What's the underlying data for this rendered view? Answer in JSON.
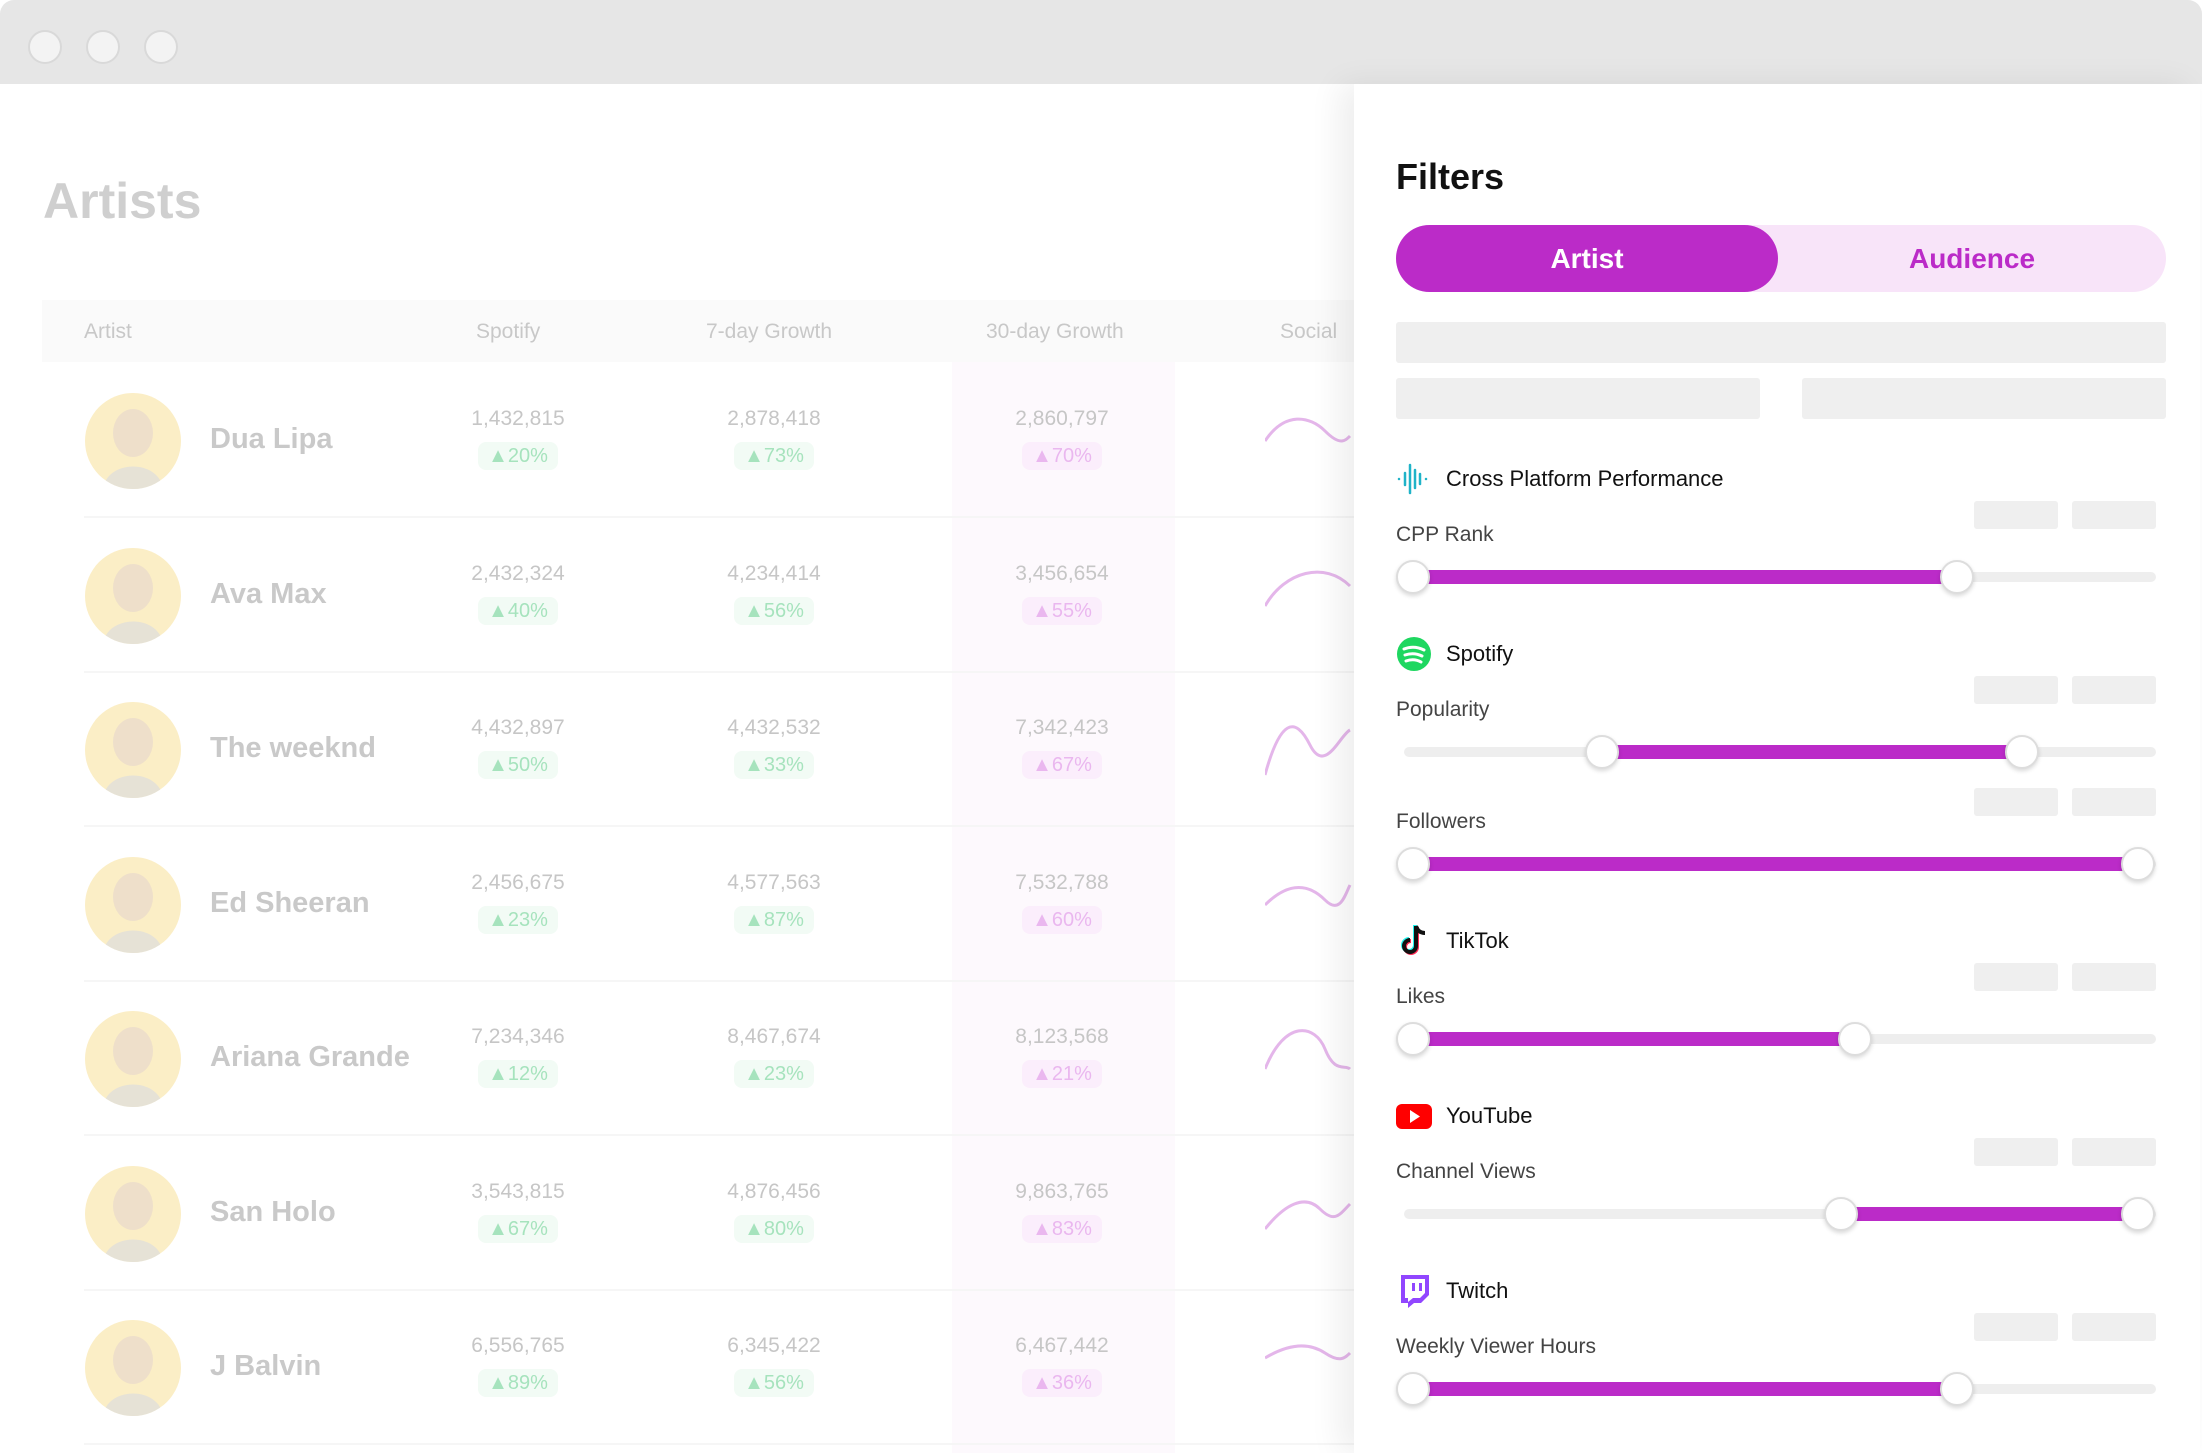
{
  "page": {
    "title": "Artists"
  },
  "table": {
    "headers": [
      "Artist",
      "Spotify",
      "7-day Growth",
      "30-day Growth",
      "Social"
    ],
    "rows": [
      {
        "name": "Dua Lipa",
        "spotify": "1,432,815",
        "spotify_growth": "▲20%",
        "d7": "2,878,418",
        "d7_growth": "▲73%",
        "d30": "2,860,797",
        "d30_growth": "▲70%"
      },
      {
        "name": "Ava Max",
        "spotify": "2,432,324",
        "spotify_growth": "▲40%",
        "d7": "4,234,414",
        "d7_growth": "▲56%",
        "d30": "3,456,654",
        "d30_growth": "▲55%"
      },
      {
        "name": "The weeknd",
        "spotify": "4,432,897",
        "spotify_growth": "▲50%",
        "d7": "4,432,532",
        "d7_growth": "▲33%",
        "d30": "7,342,423",
        "d30_growth": "▲67%"
      },
      {
        "name": "Ed Sheeran",
        "spotify": "2,456,675",
        "spotify_growth": "▲23%",
        "d7": "4,577,563",
        "d7_growth": "▲87%",
        "d30": "7,532,788",
        "d30_growth": "▲60%"
      },
      {
        "name": "Ariana Grande",
        "spotify": "7,234,346",
        "spotify_growth": "▲12%",
        "d7": "8,467,674",
        "d7_growth": "▲23%",
        "d30": "8,123,568",
        "d30_growth": "▲21%"
      },
      {
        "name": "San Holo",
        "spotify": "3,543,815",
        "spotify_growth": "▲67%",
        "d7": "4,876,456",
        "d7_growth": "▲80%",
        "d30": "9,863,765",
        "d30_growth": "▲83%"
      },
      {
        "name": "J Balvin",
        "spotify": "6,556,765",
        "spotify_growth": "▲89%",
        "d7": "6,345,422",
        "d7_growth": "▲56%",
        "d30": "6,467,442",
        "d30_growth": "▲36%"
      }
    ]
  },
  "filters": {
    "title": "Filters",
    "tabs": [
      {
        "label": "Artist",
        "active": true
      },
      {
        "label": "Audience",
        "active": false
      }
    ],
    "accent": "#bb2bc8",
    "sections": [
      {
        "title": "Cross Platform Performance",
        "icon": "waveform-icon",
        "sliders": [
          {
            "label": "CPP Rank",
            "min": 0,
            "max": 0.75
          }
        ]
      },
      {
        "title": "Spotify",
        "icon": "spotify-icon",
        "sliders": [
          {
            "label": "Popularity",
            "min": 0.26,
            "max": 0.84
          },
          {
            "label": "Followers",
            "min": 0,
            "max": 1
          }
        ]
      },
      {
        "title": "TikTok",
        "icon": "tiktok-icon",
        "sliders": [
          {
            "label": "Likes",
            "min": 0,
            "max": 0.61
          }
        ]
      },
      {
        "title": "YouTube",
        "icon": "youtube-icon",
        "sliders": [
          {
            "label": "Channel Views",
            "min": 0.59,
            "max": 1
          }
        ]
      },
      {
        "title": "Twitch",
        "icon": "twitch-icon",
        "sliders": [
          {
            "label": "Weekly Viewer Hours",
            "min": 0,
            "max": 0.75
          }
        ]
      }
    ]
  }
}
